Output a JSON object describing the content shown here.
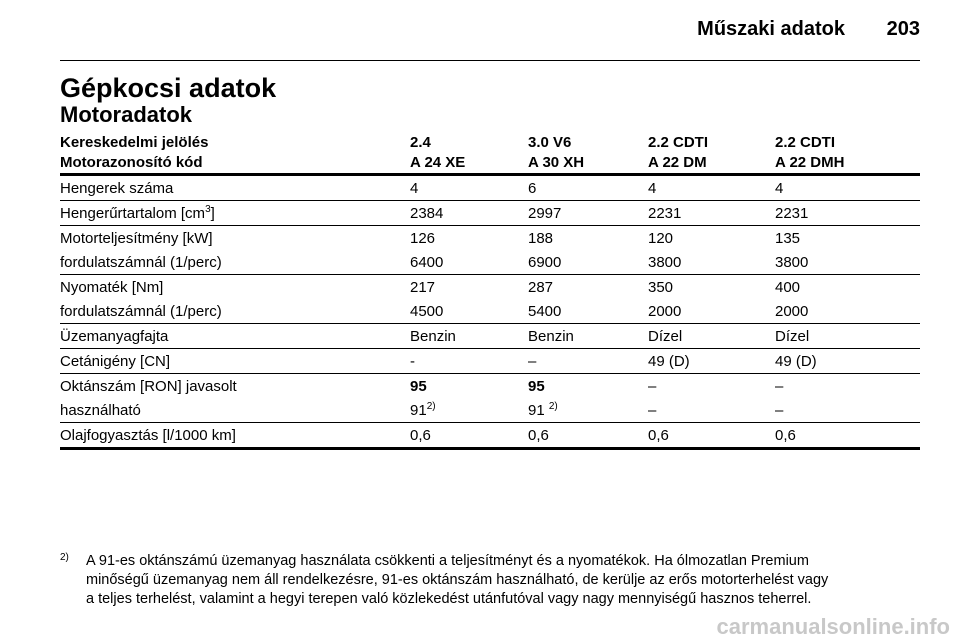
{
  "header": {
    "section": "Műszaki adatok",
    "page": "203"
  },
  "title": "Gépkocsi adatok",
  "subtitle": "Motoradatok",
  "table": {
    "header": [
      [
        "Kereskedelmi jelölés",
        "2.4",
        "3.0 V6",
        "2.2 CDTI",
        "2.2 CDTI"
      ],
      [
        "Motorazonosító kód",
        "A 24 XE",
        "A 30 XH",
        "A 22 DM",
        "A 22 DMH"
      ]
    ],
    "groups": [
      [
        [
          "Hengerek száma",
          "4",
          "6",
          "4",
          "4"
        ]
      ],
      [
        [
          {
            "text": "Hengerűrtartalom [cm",
            "sup": "3",
            "after": "]"
          },
          "2384",
          "2997",
          "2231",
          "2231"
        ]
      ],
      [
        [
          "Motorteljesítmény [kW]",
          "126",
          "188",
          "120",
          "135"
        ],
        [
          "fordulatszámnál (1/perc)",
          "6400",
          "6900",
          "3800",
          "3800"
        ]
      ],
      [
        [
          "Nyomaték [Nm]",
          "217",
          "287",
          "350",
          "400"
        ],
        [
          "fordulatszámnál (1/perc)",
          "4500",
          "5400",
          "2000",
          "2000"
        ]
      ],
      [
        [
          "Üzemanyagfajta",
          "Benzin",
          "Benzin",
          "Dízel",
          "Dízel"
        ]
      ],
      [
        [
          "Cetánigény [CN]",
          "-",
          "–",
          "49 (D)",
          "49 (D)"
        ]
      ],
      [
        [
          "Oktánszám [RON] javasolt",
          "95",
          "95",
          "–",
          "–"
        ],
        [
          "használható",
          {
            "text": "91",
            "sup": "2)"
          },
          {
            "text": "91 ",
            "sup": "2)"
          },
          "–",
          "–"
        ]
      ],
      [
        [
          "Olajfogyasztás [l/1000 km]",
          "0,6",
          "0,6",
          "0,6",
          "0,6"
        ]
      ]
    ]
  },
  "footnote": {
    "marker": "2)",
    "lines": [
      "A 91-es oktánszámú üzemanyag használata csökkenti a teljesítményt és a nyomatékok. Ha ólmozatlan Premium",
      "minőségű üzemanyag nem áll rendelkezésre, 91-es oktánszám használható, de kerülje az erős motorterhelést vagy",
      "a teljes terhelést, valamint a hegyi terepen való közlekedést utánfutóval vagy nagy mennyiségű hasznos teherrel."
    ]
  },
  "watermark": "carmanualsonline.info"
}
